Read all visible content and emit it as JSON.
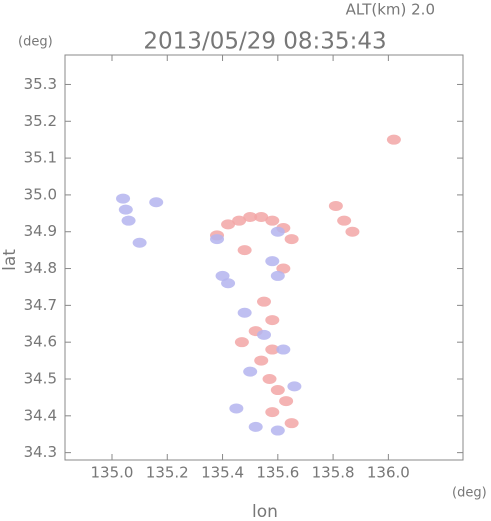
{
  "chart_data": {
    "type": "scatter",
    "annotation": "ALT(km) 2.0",
    "y_unit": "(deg)",
    "x_unit": "(deg)",
    "title": "2013/05/29 08:35:43",
    "xlabel": "lon",
    "ylabel": "lat",
    "xlim": [
      134.83,
      136.27
    ],
    "ylim": [
      34.28,
      35.38
    ],
    "xticks": [
      {
        "value": 135.0,
        "label": "135.0"
      },
      135.2,
      135.4,
      135.6,
      135.8,
      {
        "value": 136.0,
        "label": "136.0"
      }
    ],
    "yticks": [
      34.3,
      34.4,
      34.5,
      34.6,
      34.7,
      34.8,
      34.9,
      {
        "value": 35.0,
        "label": "35.0"
      },
      35.1,
      35.2,
      35.3
    ],
    "series": [
      {
        "color": "#f2a6a6",
        "x": [
          135.42,
          135.46,
          135.5,
          135.54,
          135.58,
          135.62,
          135.65,
          135.38,
          135.81,
          135.84,
          135.87,
          136.02,
          135.55,
          135.58,
          135.52,
          135.58,
          135.54,
          135.57,
          135.6,
          135.63,
          135.58,
          135.65,
          135.47,
          135.62,
          135.48
        ],
        "y": [
          34.92,
          34.93,
          34.94,
          34.94,
          34.93,
          34.91,
          34.88,
          34.89,
          34.97,
          34.93,
          34.9,
          35.15,
          34.71,
          34.66,
          34.63,
          34.58,
          34.55,
          34.5,
          34.47,
          34.44,
          34.41,
          34.38,
          34.6,
          34.8,
          34.85
        ]
      },
      {
        "color": "#b4b4ee",
        "x": [
          135.04,
          135.05,
          135.06,
          135.16,
          135.1,
          135.4,
          135.42,
          135.58,
          135.6,
          135.48,
          135.55,
          135.62,
          135.5,
          135.66,
          135.45,
          135.6,
          135.52,
          135.38,
          135.6
        ],
        "y": [
          34.99,
          34.96,
          34.93,
          34.98,
          34.87,
          34.78,
          34.76,
          34.82,
          34.78,
          34.68,
          34.62,
          34.58,
          34.52,
          34.48,
          34.42,
          34.36,
          34.37,
          34.88,
          34.9
        ]
      }
    ]
  }
}
